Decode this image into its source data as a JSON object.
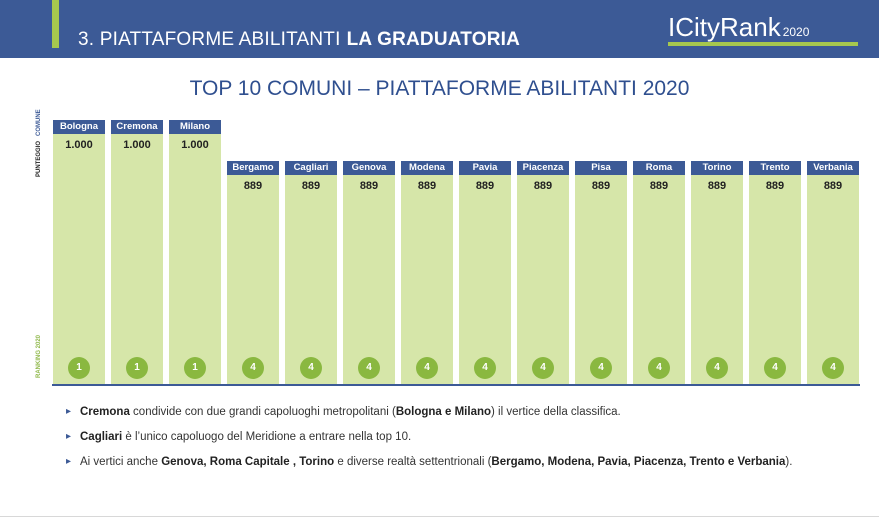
{
  "header": {
    "section": "3. PIATTAFORME ABILITANTI",
    "subsection": "LA GRADUATORIA",
    "logo": "ICityRank",
    "logo_year": "2020"
  },
  "side_labels": {
    "comune": "COMUNE",
    "punteggio": "PUNTEGGIO",
    "ranking": "RANKING 2020"
  },
  "chart_data": {
    "type": "bar",
    "title": "TOP 10 COMUNI – PIATTAFORME ABILITANTI 2020",
    "categories": [
      "Bologna",
      "Cremona",
      "Milano",
      "Bergamo",
      "Cagliari",
      "Genova",
      "Modena",
      "Pavia",
      "Piacenza",
      "Pisa",
      "Roma",
      "Torino",
      "Trento",
      "Verbania"
    ],
    "values": [
      1000,
      1000,
      1000,
      889,
      889,
      889,
      889,
      889,
      889,
      889,
      889,
      889,
      889,
      889
    ],
    "value_labels": [
      "1.000",
      "1.000",
      "1.000",
      "889",
      "889",
      "889",
      "889",
      "889",
      "889",
      "889",
      "889",
      "889",
      "889",
      "889"
    ],
    "ranks": [
      "1",
      "1",
      "1",
      "4",
      "4",
      "4",
      "4",
      "4",
      "4",
      "4",
      "4",
      "4",
      "4",
      "4"
    ],
    "colors": {
      "bar": "#d6e6a9",
      "label_bg": "#3c5a96",
      "rank": "#8ab840"
    }
  },
  "bullets": [
    [
      {
        "text": "Cremona",
        "bold": true
      },
      {
        "text": " condivide con due grandi capoluoghi metropolitani  (",
        "bold": false
      },
      {
        "text": "Bologna e Milano",
        "bold": true
      },
      {
        "text": ") il vertice della classifica.",
        "bold": false
      }
    ],
    [
      {
        "text": "Cagliari",
        "bold": true
      },
      {
        "text": " è l’unico capoluogo del Meridione a entrare nella top 10.",
        "bold": false
      }
    ],
    [
      {
        "text": "Ai vertici anche ",
        "bold": false
      },
      {
        "text": "Genova, Roma Capitale , Torino",
        "bold": true
      },
      {
        "text": " e diverse realtà settentrionali (",
        "bold": false
      },
      {
        "text": "Bergamo, Modena, Pavia, Piacenza, Trento e Verbania",
        "bold": true
      },
      {
        "text": ").",
        "bold": false
      }
    ]
  ]
}
